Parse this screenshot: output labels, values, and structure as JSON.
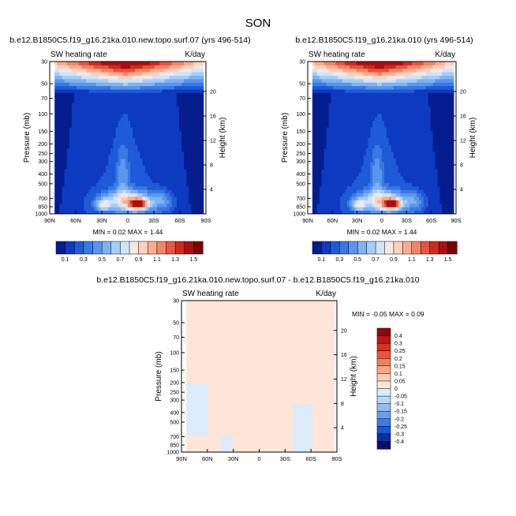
{
  "suptitle": "SON",
  "colors": {
    "lat_labels_color": "#000000",
    "panel_bg": "#ffffff"
  },
  "chart_data": [
    {
      "type": "heatmap",
      "id": "top-left",
      "title": "b.e12.B1850C5.f19_g16.21ka.010.new.topo.surf.07 (yrs 496-514)",
      "left_label": "SW heating rate",
      "right_label": "K/day",
      "ylabel": "Pressure (mb)",
      "y2label": "Height (km)",
      "x_ticks": [
        "90N",
        "60N",
        "30N",
        "0",
        "30S",
        "60S",
        "90S"
      ],
      "xlim": [
        90,
        -90
      ],
      "y_ticks": [
        1000,
        850,
        700,
        500,
        400,
        300,
        250,
        200,
        150,
        100,
        70,
        50,
        30
      ],
      "ylim": [
        1000,
        30
      ],
      "height_ticks": [
        4,
        8,
        12,
        16,
        20
      ],
      "stats_text": "MIN =  0.02  MAX =  1.44",
      "min": 0.02,
      "max": 1.44,
      "field": "sw_heating_total"
    },
    {
      "type": "heatmap",
      "id": "top-right",
      "title": "b.e12.B1850C5.f19_g16.21ka.010 (yrs 496-514)",
      "left_label": "SW heating rate",
      "right_label": "K/day",
      "ylabel": "Pressure (mb)",
      "y2label": "Height (km)",
      "x_ticks": [
        "90N",
        "60N",
        "30N",
        "0",
        "30S",
        "60S",
        "90S"
      ],
      "xlim": [
        90,
        -90
      ],
      "y_ticks": [
        1000,
        850,
        700,
        500,
        400,
        300,
        250,
        200,
        150,
        100,
        70,
        50,
        30
      ],
      "ylim": [
        1000,
        30
      ],
      "height_ticks": [
        4,
        8,
        12,
        16,
        20
      ],
      "stats_text": "MIN =  0.02  MAX =  1.44",
      "min": 0.02,
      "max": 1.44,
      "field": "sw_heating_total"
    },
    {
      "type": "heatmap",
      "id": "bottom-diff",
      "title": "b.e12.B1850C5.f19_g16.21ka.010.new.topo.surf.07 - b.e12.B1850C5.f19_g16.21ka.010",
      "left_label": "SW heating rate",
      "right_label": "K/day",
      "ylabel": "Pressure (mb)",
      "y2label": "Height (km)",
      "x_ticks": [
        "90N",
        "60N",
        "30N",
        "0",
        "30S",
        "60S",
        "90S"
      ],
      "xlim": [
        90,
        -90
      ],
      "y_ticks": [
        1000,
        850,
        700,
        500,
        400,
        300,
        250,
        200,
        150,
        100,
        70,
        50,
        30
      ],
      "ylim": [
        1000,
        30
      ],
      "height_ticks": [
        4,
        8,
        12,
        16,
        20
      ],
      "stats_text": "MIN = -0.05  MAX =  0.09",
      "min": -0.05,
      "max": 0.09,
      "field": "sw_heating_difference"
    }
  ],
  "colorbar_main": {
    "labels": [
      "0.1",
      "0.3",
      "0.5",
      "0.7",
      "0.9",
      "1.1",
      "1.3",
      "1.5"
    ],
    "levels": [
      0.1,
      0.2,
      0.3,
      0.4,
      0.5,
      0.6,
      0.7,
      0.8,
      0.9,
      1.0,
      1.1,
      1.2,
      1.3,
      1.4,
      1.5
    ],
    "colors": [
      "#051d8e",
      "#0d3ac0",
      "#1f5ad8",
      "#3a78e3",
      "#5a96ea",
      "#7fb2f0",
      "#a6cdf6",
      "#cfe4fa",
      "#f5e8e0",
      "#fbd0bc",
      "#f8ad91",
      "#f28468",
      "#e6553f",
      "#cf2b1d",
      "#aa1010",
      "#7a0306"
    ]
  },
  "colorbar_diff": {
    "labels": [
      "0.4",
      "0.3",
      "0.25",
      "0.2",
      "0.15",
      "0.1",
      "0.05",
      "0",
      "-0.05",
      "-0.1",
      "-0.15",
      "-0.2",
      "-0.25",
      "-0.3",
      "-0.4"
    ],
    "colors": [
      "#8b0a0a",
      "#c01616",
      "#d93121",
      "#e9583a",
      "#f2805c",
      "#f8a785",
      "#fbcbb3",
      "#fde5d8",
      "#dcebf9",
      "#bcd6f5",
      "#92bcef",
      "#6b9ee8",
      "#4079e0",
      "#1f55cd",
      "#0a2ea6",
      "#04126e"
    ]
  }
}
